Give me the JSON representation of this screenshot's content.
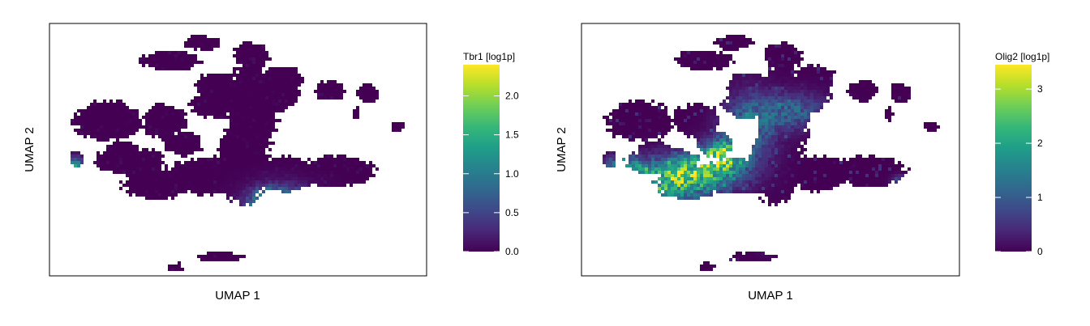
{
  "colors": {
    "viridis": [
      "#440154",
      "#482878",
      "#3e4989",
      "#31688e",
      "#26828e",
      "#1f9e89",
      "#35b779",
      "#6ece58",
      "#b5de2b",
      "#fde725"
    ],
    "frame": "#000000"
  },
  "chart_data": [
    {
      "type": "heatmap",
      "title": "",
      "xlabel": "UMAP 1",
      "ylabel": "UMAP 2",
      "legend": {
        "title": "Tbr1 [log1p]",
        "position": "right",
        "ticks": [
          "0.0",
          "0.5",
          "1.0",
          "1.5",
          "2.0"
        ],
        "range": [
          0,
          2.4
        ]
      },
      "grid": false,
      "axis_ticks": false,
      "xlim": [
        0,
        100
      ],
      "ylim": [
        0,
        100
      ],
      "hotspots": [
        {
          "x": 61,
          "y": 26,
          "sx": 6,
          "sy": 6,
          "value": 1.5
        },
        {
          "x": 67,
          "y": 24,
          "sx": 3.5,
          "sy": 3.5,
          "value": 2.0
        },
        {
          "x": 58,
          "y": 31,
          "sx": 3,
          "sy": 3,
          "value": 1.0
        },
        {
          "x": 6,
          "y": 45,
          "sx": 2,
          "sy": 2,
          "value": 1.3
        }
      ]
    },
    {
      "type": "heatmap",
      "title": "",
      "xlabel": "UMAP 1",
      "ylabel": "UMAP 2",
      "legend": {
        "title": "Olig2 [log1p]",
        "position": "right",
        "ticks": [
          "0",
          "1",
          "2",
          "3"
        ],
        "range": [
          0,
          3.45
        ]
      },
      "grid": false,
      "axis_ticks": false,
      "xlim": [
        0,
        100
      ],
      "ylim": [
        0,
        100
      ],
      "hotspots": [
        {
          "x": 18,
          "y": 36,
          "sx": 10,
          "sy": 6,
          "value": 1.9
        },
        {
          "x": 30,
          "y": 42,
          "sx": 8,
          "sy": 5,
          "value": 2.3
        },
        {
          "x": 37,
          "y": 49,
          "sx": 4,
          "sy": 4,
          "value": 2.5
        },
        {
          "x": 44,
          "y": 60,
          "sx": 5,
          "sy": 9,
          "value": 1.3
        },
        {
          "x": 56,
          "y": 66,
          "sx": 6,
          "sy": 5,
          "value": 1.1
        },
        {
          "x": 11,
          "y": 44,
          "sx": 3,
          "sy": 3,
          "value": 1.6
        },
        {
          "x": 48,
          "y": 16,
          "sx": 1.5,
          "sy": 3,
          "value": 1.8
        },
        {
          "x": 84,
          "y": 38,
          "sx": 1.5,
          "sy": 1.5,
          "value": 1.2
        }
      ]
    }
  ]
}
